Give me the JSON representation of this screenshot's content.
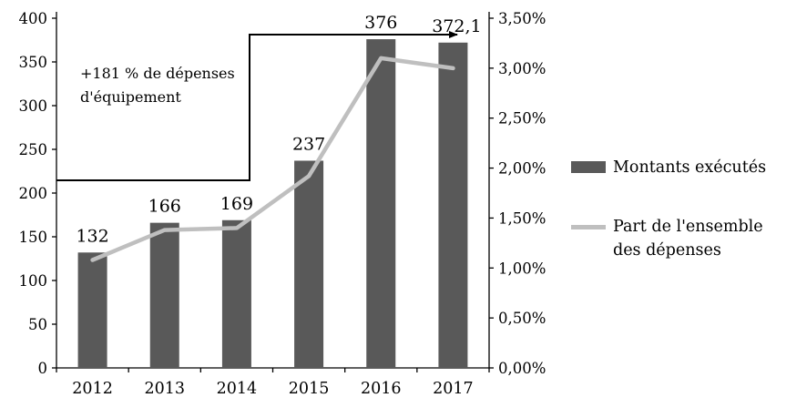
{
  "chart_data": {
    "type": "bar",
    "subtype": "bar-line-combo-dual-axis",
    "categories": [
      "2012",
      "2013",
      "2014",
      "2015",
      "2016",
      "2017"
    ],
    "series": [
      {
        "name": "Montants exécutés",
        "kind": "bar",
        "axis": "left",
        "values": [
          132,
          166,
          169,
          237,
          376,
          372.1
        ],
        "labels": [
          "132",
          "166",
          "169",
          "237",
          "376",
          "372,1"
        ],
        "color": "#595959"
      },
      {
        "name": "Part de l'ensemble des dépenses",
        "kind": "line",
        "axis": "right",
        "values": [
          1.08,
          1.38,
          1.4,
          1.92,
          3.1,
          3.0
        ],
        "color": "#BFBFBF"
      }
    ],
    "left_axis": {
      "min": 0,
      "max": 400,
      "step": 50,
      "tick_labels": [
        "0",
        "50",
        "100",
        "150",
        "200",
        "250",
        "300",
        "350",
        "400"
      ]
    },
    "right_axis": {
      "min": 0,
      "max": 3.5,
      "step": 0.5,
      "tick_labels": [
        "0,00%",
        "0,50%",
        "1,00%",
        "1,50%",
        "2,00%",
        "2,50%",
        "3,00%",
        "3,50%"
      ]
    },
    "annotation": {
      "line1": "+181 % de dépenses",
      "line2": "d'équipement"
    },
    "legend": [
      {
        "label": "Montants exécutés",
        "swatch": "bar",
        "color": "#595959"
      },
      {
        "label": "Part de l'ensemble des dépenses",
        "swatch": "line",
        "color": "#BFBFBF"
      }
    ],
    "grid": false,
    "legend_position": "right",
    "title": ""
  }
}
